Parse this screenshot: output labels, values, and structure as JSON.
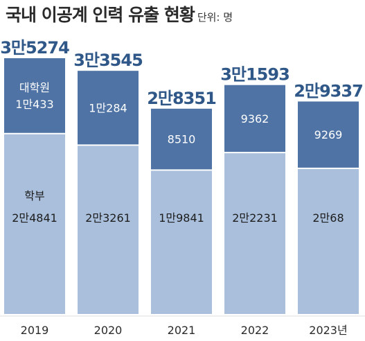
{
  "chart_data": {
    "type": "bar",
    "stacked": true,
    "title": "국내 이공계 인력 유출 현황",
    "unit": "단위: 명",
    "categories": [
      "2019",
      "2020",
      "2021",
      "2022",
      "2023년"
    ],
    "series": [
      {
        "name": "학부",
        "values": [
          24841,
          23261,
          19841,
          22231,
          20068
        ],
        "labels": [
          "2만4841",
          "2만3261",
          "1만9841",
          "2만2231",
          "2만68"
        ],
        "color": "#a9bfdc"
      },
      {
        "name": "대학원",
        "values": [
          10433,
          10284,
          8510,
          9362,
          9269
        ],
        "labels": [
          "1만433",
          "1만284",
          "8510",
          "9362",
          "9269"
        ],
        "color": "#4e73a4"
      }
    ],
    "totals": [
      35274,
      33545,
      28351,
      31593,
      29337
    ],
    "total_labels": [
      "3만5274",
      "3만3545",
      "2만8351",
      "3만1593",
      "2만9337"
    ],
    "ylim": [
      0,
      35274
    ],
    "grid": false,
    "legend": "in-bar",
    "colors": {
      "total": "#2f5888",
      "border": "#ffffff"
    }
  }
}
